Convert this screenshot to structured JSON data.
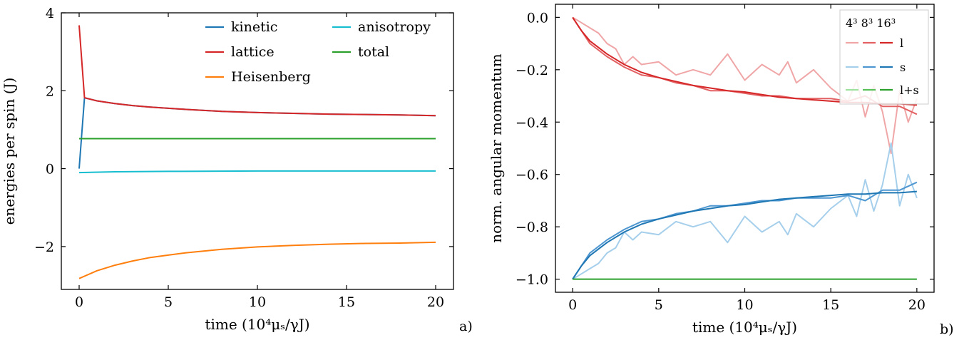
{
  "chart_data": [
    {
      "type": "line",
      "panel_label": "a)",
      "xlabel": "time (10⁴μₛ/γJ)",
      "ylabel": "energies per spin (J)",
      "xlim": [
        -1,
        21
      ],
      "ylim": [
        -3.1,
        4.0
      ],
      "xticks": [
        0,
        5,
        10,
        15,
        20
      ],
      "xtick_labels": [
        "0",
        "5",
        "10",
        "15",
        "20"
      ],
      "yticks": [
        -2,
        0,
        2,
        4
      ],
      "ytick_labels": [
        "−2",
        "0",
        "2",
        "4"
      ],
      "grid": false,
      "legend_position": "top-right",
      "series": [
        {
          "name": "kinetic",
          "color": "#1f77b4",
          "x": [
            0,
            0.3,
            1,
            2,
            3,
            4,
            5,
            6,
            8,
            10,
            12,
            14,
            16,
            18,
            20
          ],
          "y": [
            0.0,
            1.82,
            1.74,
            1.67,
            1.62,
            1.58,
            1.55,
            1.52,
            1.47,
            1.44,
            1.42,
            1.4,
            1.39,
            1.38,
            1.36
          ]
        },
        {
          "name": "lattice",
          "color": "#d62728",
          "x": [
            0,
            0.3,
            1,
            2,
            3,
            4,
            5,
            6,
            8,
            10,
            12,
            14,
            16,
            18,
            20
          ],
          "y": [
            3.68,
            1.82,
            1.74,
            1.67,
            1.62,
            1.58,
            1.55,
            1.52,
            1.47,
            1.44,
            1.42,
            1.4,
            1.39,
            1.38,
            1.36
          ]
        },
        {
          "name": "Heisenberg",
          "color": "#ff7f0e",
          "x": [
            0,
            1,
            2,
            3,
            4,
            5,
            6,
            8,
            10,
            12,
            14,
            16,
            18,
            20
          ],
          "y": [
            -2.82,
            -2.62,
            -2.48,
            -2.37,
            -2.28,
            -2.22,
            -2.16,
            -2.07,
            -2.01,
            -1.97,
            -1.94,
            -1.92,
            -1.91,
            -1.89
          ]
        },
        {
          "name": "anisotropy",
          "color": "#17becf",
          "x": [
            0,
            2,
            5,
            10,
            15,
            20
          ],
          "y": [
            -0.1,
            -0.08,
            -0.07,
            -0.06,
            -0.06,
            -0.06
          ]
        },
        {
          "name": "total",
          "color": "#2ca02c",
          "x": [
            0,
            20
          ],
          "y": [
            0.77,
            0.77
          ]
        }
      ]
    },
    {
      "type": "line",
      "panel_label": "b)",
      "xlabel": "time (10⁴μₛ/γJ)",
      "ylabel": "norm. angular momentum",
      "xlim": [
        -1,
        21
      ],
      "ylim": [
        -1.05,
        0.05
      ],
      "xticks": [
        0,
        5,
        10,
        15,
        20
      ],
      "xtick_labels": [
        "0",
        "5",
        "10",
        "15",
        "20"
      ],
      "yticks": [
        -1.0,
        -0.8,
        -0.6,
        -0.4,
        -0.2,
        0.0
      ],
      "ytick_labels": [
        "−1.0",
        "−0.8",
        "−0.6",
        "−0.4",
        "−0.2",
        "0.0"
      ],
      "grid": false,
      "legend_position": "top-right",
      "legend_header": "4³ 8³ 16³",
      "legend_entries": [
        {
          "label": "l",
          "colors": [
            "#f0a6a7",
            "#e36163",
            "#d62728"
          ]
        },
        {
          "label": "s",
          "colors": [
            "#a6cfec",
            "#4e97d1",
            "#1f77b4"
          ]
        },
        {
          "label": "l+s",
          "colors": [
            "#9fe29f",
            "#5ac15a",
            "#2ca02c"
          ]
        }
      ],
      "series": [
        {
          "name": "l 4³",
          "color": "#f0a6a7",
          "x": [
            0,
            0.5,
            1,
            1.5,
            2,
            2.5,
            3,
            3.5,
            4,
            5,
            6,
            7,
            8,
            9,
            10,
            11,
            12,
            12.5,
            13,
            14,
            15,
            16,
            16.5,
            17,
            17.5,
            18,
            18.5,
            19,
            19.5,
            20
          ],
          "y": [
            0.0,
            -0.02,
            -0.04,
            -0.06,
            -0.1,
            -0.12,
            -0.18,
            -0.15,
            -0.18,
            -0.17,
            -0.22,
            -0.2,
            -0.22,
            -0.14,
            -0.24,
            -0.18,
            -0.22,
            -0.17,
            -0.25,
            -0.2,
            -0.27,
            -0.32,
            -0.24,
            -0.38,
            -0.26,
            -0.36,
            -0.52,
            -0.28,
            -0.4,
            -0.31
          ]
        },
        {
          "name": "l 8³",
          "color": "#e36163",
          "x": [
            0,
            0.5,
            1,
            2,
            3,
            4,
            5,
            6,
            7,
            8,
            9,
            10,
            11,
            12,
            13,
            14,
            15,
            16,
            17,
            18,
            19,
            20
          ],
          "y": [
            0.0,
            -0.05,
            -0.1,
            -0.15,
            -0.19,
            -0.22,
            -0.23,
            -0.25,
            -0.26,
            -0.28,
            -0.28,
            -0.29,
            -0.3,
            -0.3,
            -0.31,
            -0.31,
            -0.31,
            -0.32,
            -0.3,
            -0.34,
            -0.34,
            -0.37
          ]
        },
        {
          "name": "l 16³",
          "color": "#d62728",
          "x": [
            0,
            0.5,
            1,
            2,
            3,
            4,
            5,
            6,
            7,
            8,
            9,
            10,
            11,
            12,
            13,
            14,
            15,
            16,
            17,
            18,
            19,
            20
          ],
          "y": [
            0.0,
            -0.05,
            -0.09,
            -0.14,
            -0.18,
            -0.21,
            -0.23,
            -0.245,
            -0.26,
            -0.27,
            -0.28,
            -0.285,
            -0.295,
            -0.305,
            -0.31,
            -0.315,
            -0.32,
            -0.325,
            -0.325,
            -0.33,
            -0.33,
            -0.335
          ]
        },
        {
          "name": "s 4³",
          "color": "#a6cfec",
          "x": [
            0,
            0.5,
            1,
            1.5,
            2,
            2.5,
            3,
            3.5,
            4,
            5,
            6,
            7,
            8,
            9,
            10,
            11,
            12,
            12.5,
            13,
            14,
            15,
            16,
            16.5,
            17,
            17.5,
            18,
            18.5,
            19,
            19.5,
            20
          ],
          "y": [
            -1.0,
            -0.98,
            -0.96,
            -0.94,
            -0.9,
            -0.88,
            -0.82,
            -0.85,
            -0.82,
            -0.83,
            -0.78,
            -0.8,
            -0.78,
            -0.86,
            -0.76,
            -0.82,
            -0.78,
            -0.83,
            -0.75,
            -0.8,
            -0.73,
            -0.68,
            -0.76,
            -0.62,
            -0.74,
            -0.64,
            -0.48,
            -0.72,
            -0.6,
            -0.69
          ]
        },
        {
          "name": "s 8³",
          "color": "#4e97d1",
          "x": [
            0,
            0.5,
            1,
            2,
            3,
            4,
            5,
            6,
            7,
            8,
            9,
            10,
            11,
            12,
            13,
            14,
            15,
            16,
            17,
            18,
            19,
            20
          ],
          "y": [
            -1.0,
            -0.95,
            -0.9,
            -0.85,
            -0.81,
            -0.78,
            -0.77,
            -0.75,
            -0.74,
            -0.72,
            -0.72,
            -0.71,
            -0.7,
            -0.7,
            -0.69,
            -0.69,
            -0.69,
            -0.68,
            -0.7,
            -0.66,
            -0.66,
            -0.63
          ]
        },
        {
          "name": "s 16³",
          "color": "#1f77b4",
          "x": [
            0,
            0.5,
            1,
            2,
            3,
            4,
            5,
            6,
            7,
            8,
            9,
            10,
            11,
            12,
            13,
            14,
            15,
            16,
            17,
            18,
            19,
            20
          ],
          "y": [
            -1.0,
            -0.95,
            -0.91,
            -0.86,
            -0.82,
            -0.79,
            -0.77,
            -0.755,
            -0.74,
            -0.73,
            -0.72,
            -0.715,
            -0.705,
            -0.695,
            -0.69,
            -0.685,
            -0.68,
            -0.675,
            -0.675,
            -0.67,
            -0.67,
            -0.665
          ]
        },
        {
          "name": "l+s",
          "color": "#2ca02c",
          "x": [
            0,
            20
          ],
          "y": [
            -1.0,
            -1.0
          ]
        }
      ]
    }
  ]
}
